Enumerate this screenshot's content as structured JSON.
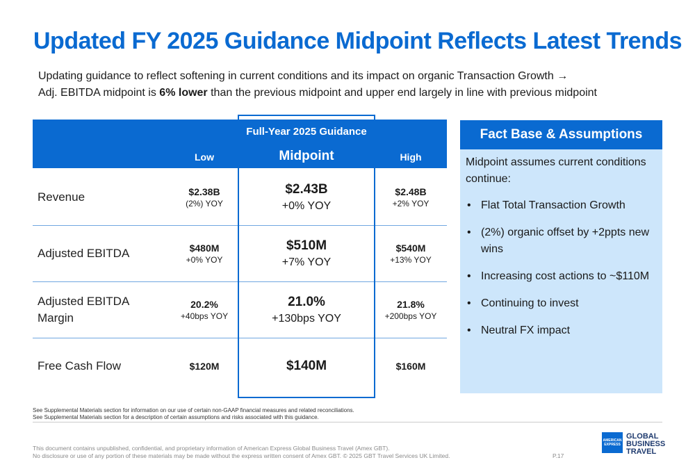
{
  "title": "Updated FY 2025 Guidance Midpoint Reflects Latest Trends",
  "subtitle": {
    "line1": "Updating guidance to reflect softening in current conditions and its impact on organic Transaction Growth →",
    "line2_pre": "Adj. EBITDA midpoint is ",
    "line2_bold": "6% lower",
    "line2_post": " than the previous midpoint and upper end largely in line with previous midpoint"
  },
  "guidance": {
    "header": "Full-Year 2025 Guidance",
    "columns": {
      "low": "Low",
      "mid": "Midpoint",
      "high": "High"
    },
    "rows": [
      {
        "label": "Revenue",
        "low": "$2.38B",
        "low_sub": "(2%) YOY",
        "mid": "$2.43B",
        "mid_sub": "+0% YOY",
        "high": "$2.48B",
        "high_sub": "+2% YOY"
      },
      {
        "label": "Adjusted EBITDA",
        "low": "$480M",
        "low_sub": "+0% YOY",
        "mid": "$510M",
        "mid_sub": "+7% YOY",
        "high": "$540M",
        "high_sub": "+13% YOY"
      },
      {
        "label": "Adjusted EBITDA Margin",
        "low": "20.2%",
        "low_sub": "+40bps YOY",
        "mid": "21.0%",
        "mid_sub": "+130bps YOY",
        "high": "21.8%",
        "high_sub": "+200bps YOY"
      },
      {
        "label": "Free Cash Flow",
        "low": "$120M",
        "low_sub": "",
        "mid": "$140M",
        "mid_sub": "",
        "high": "$160M",
        "high_sub": ""
      }
    ]
  },
  "fact_base": {
    "title": "Fact Base & Assumptions",
    "intro": "Midpoint assumes current conditions continue:",
    "bullet_glyph": "•",
    "items": [
      "Flat Total Transaction Growth",
      "(2%) organic offset by +2ppts new wins",
      "Increasing cost actions to ~$110M",
      "Continuing to invest",
      "Neutral FX impact"
    ]
  },
  "footnotes": [
    "See Supplemental Materials section for information on our use of certain non-GAAP financial measures and related reconciliations.",
    "See Supplemental Materials section for a description of certain assumptions and risks associated with this guidance."
  ],
  "legal": [
    "This document contains unpublished, confidential, and proprietary information of American Express Global Business Travel (Amex GBT).",
    "No disclosure or use of any portion of these materials may be made without the express written consent of Amex GBT. © 2025 GBT Travel Services UK Limited."
  ],
  "page_number": "P.17",
  "logo": {
    "box_line1": "AMERICAN",
    "box_line2": "EXPRESS",
    "text_line1": "GLOBAL",
    "text_line2": "BUSINESS",
    "text_line3": "TRAVEL"
  },
  "colors": {
    "brand_blue": "#0a6ad1",
    "panel_light_blue": "#cde6fb"
  }
}
